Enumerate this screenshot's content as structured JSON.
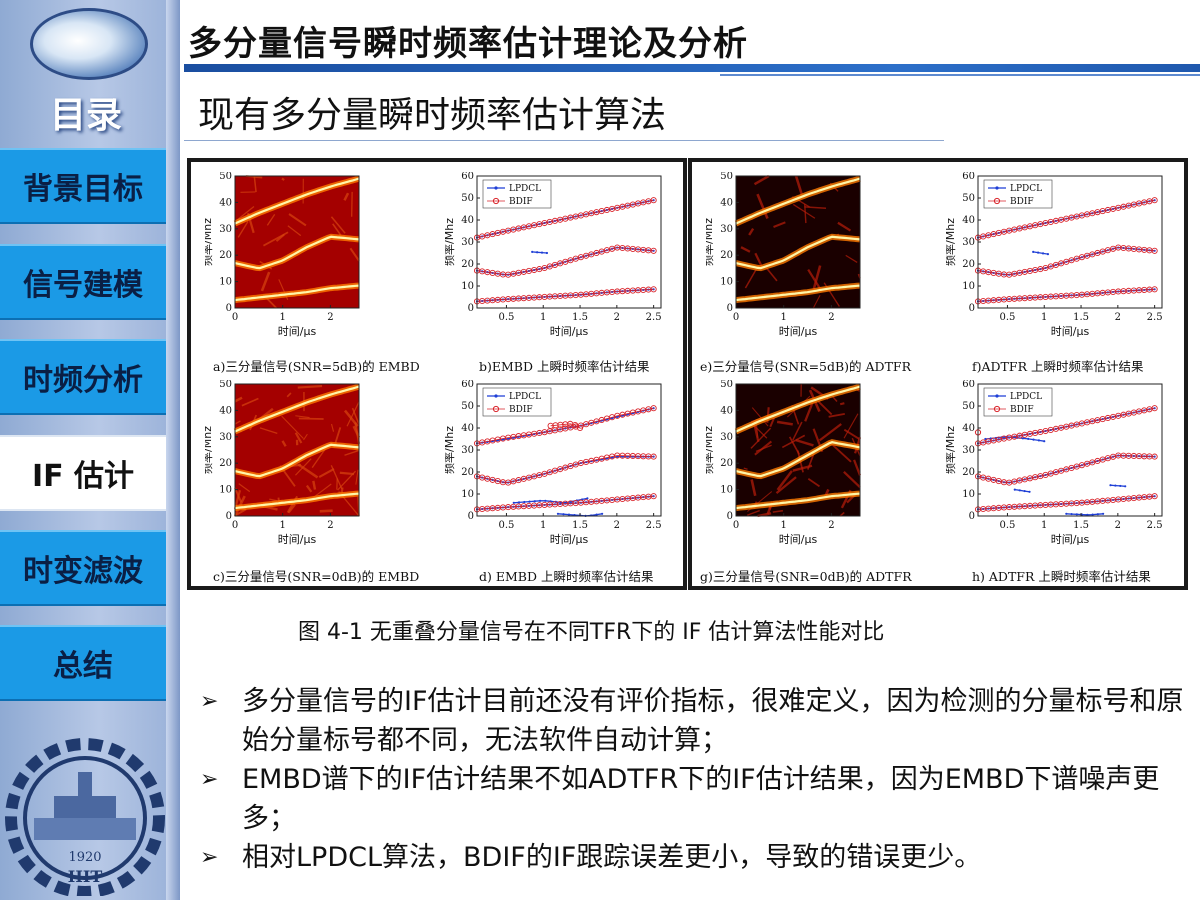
{
  "sidebar": {
    "menu_label": "目录",
    "items": [
      {
        "label": "背景目标",
        "active": false
      },
      {
        "label": "信号建模",
        "active": false
      },
      {
        "label": "时频分析",
        "active": false
      },
      {
        "label": "IF 估计",
        "active": true
      },
      {
        "label": "时变滤波",
        "active": false
      },
      {
        "label": "总结",
        "active": false
      }
    ],
    "seal_text": "1920",
    "seal_letters": "HIT"
  },
  "header": {
    "title": "多分量信号瞬时频率估计理论及分析",
    "section": "现有多分量瞬时频率估计算法"
  },
  "figure": {
    "captions": {
      "a": "a)三分量信号(SNR=5dB)的 EMBD",
      "b": "b)EMBD 上瞬时频率估计结果",
      "c": "c)三分量信号(SNR=0dB)的 EMBD",
      "d": "d) EMBD 上瞬时频率估计结果",
      "e": "e)三分量信号(SNR=5dB)的 ADTFR",
      "f": "f)ADTFR 上瞬时频率估计结果",
      "g": "g)三分量信号(SNR=0dB)的 ADTFR",
      "h": "h) ADTFR 上瞬时频率估计结果"
    },
    "ylabel": "频率/Mhz",
    "xlabel": "时间/μs",
    "legend": [
      "LPDCL",
      "BDIF"
    ],
    "caption": "图 4-1 无重叠分量信号在不同TFR下的 IF 估计算法性能对比"
  },
  "bullets": [
    "多分量信号的IF估计目前还没有评价指标，很难定义，因为检测的分量标号和原始分量标号都不同，无法软件自动计算；",
    "EMBD谱下的IF估计结果不如ADTFR下的IF估计结果，因为EMBD下谱噪声更多；",
    "相对LPDCL算法，BDIF的IF跟踪误差更小，导致的错误更少。"
  ],
  "chart_data": [
    {
      "id": "a",
      "type": "heatmap",
      "xlabel": "时间/μs",
      "ylabel": "频率/Mhz",
      "xlim": [
        0,
        2.6
      ],
      "ylim": [
        0,
        50
      ],
      "xticks": [
        0,
        1,
        2
      ],
      "yticks": [
        0,
        10,
        20,
        30,
        40,
        50
      ],
      "ridges": [
        {
          "x": [
            0,
            0.5,
            1,
            1.5,
            2,
            2.6
          ],
          "y": [
            32,
            36,
            39.5,
            43,
            46,
            49
          ]
        },
        {
          "x": [
            0,
            0.5,
            1,
            1.5,
            2,
            2.6
          ],
          "y": [
            17,
            15,
            18,
            23,
            27,
            26
          ]
        },
        {
          "x": [
            0,
            0.5,
            1,
            1.5,
            2,
            2.6
          ],
          "y": [
            3,
            4,
            5,
            6,
            7.5,
            8.5
          ]
        }
      ]
    },
    {
      "id": "b",
      "type": "line",
      "xlabel": "时间/μs",
      "ylabel": "频率/Mhz",
      "xlim": [
        0.1,
        2.6
      ],
      "ylim": [
        0,
        60
      ],
      "xticks": [
        0.5,
        1,
        1.5,
        2,
        2.5
      ],
      "yticks": [
        0,
        10,
        20,
        30,
        40,
        50,
        60
      ],
      "series": [
        {
          "name": "LPDCL",
          "segments": [
            {
              "x": [
                0.1,
                0.5,
                1,
                1.5,
                2,
                2.5
              ],
              "y": [
                32,
                35,
                38.5,
                42,
                45.5,
                49
              ]
            },
            {
              "x": [
                0.1,
                0.5,
                1,
                1.5,
                2,
                2.5
              ],
              "y": [
                17,
                15,
                18,
                23,
                27.5,
                26
              ]
            },
            {
              "x": [
                0.1,
                0.5,
                1,
                1.5,
                2,
                2.5
              ],
              "y": [
                3,
                4,
                5,
                6,
                7.5,
                8.5
              ]
            },
            {
              "x": [
                0.85,
                1.05
              ],
              "y": [
                25.5,
                25
              ]
            }
          ]
        },
        {
          "name": "BDIF",
          "segments": [
            {
              "x": [
                0.1,
                0.5,
                1,
                1.5,
                2,
                2.5
              ],
              "y": [
                32,
                35,
                38.5,
                42,
                45.5,
                49
              ]
            },
            {
              "x": [
                0.1,
                0.5,
                1,
                1.5,
                2,
                2.5
              ],
              "y": [
                17,
                15,
                18,
                23,
                27.5,
                26
              ]
            },
            {
              "x": [
                0.1,
                0.5,
                1,
                1.5,
                2,
                2.5
              ],
              "y": [
                3,
                4,
                5,
                6,
                7.5,
                8.5
              ]
            }
          ]
        }
      ]
    },
    {
      "id": "c",
      "type": "heatmap",
      "xlabel": "时间/μs",
      "ylabel": "频率/Mhz",
      "xlim": [
        0,
        2.6
      ],
      "ylim": [
        0,
        50
      ],
      "xticks": [
        0,
        1,
        2
      ],
      "yticks": [
        0,
        10,
        20,
        30,
        40,
        50
      ],
      "ridges": [
        {
          "x": [
            0,
            0.5,
            1,
            1.5,
            2,
            2.6
          ],
          "y": [
            32,
            36,
            39.5,
            43,
            46,
            49
          ]
        },
        {
          "x": [
            0,
            0.5,
            1,
            1.5,
            2,
            2.6
          ],
          "y": [
            17,
            15,
            18,
            23,
            27,
            26
          ]
        },
        {
          "x": [
            0,
            0.5,
            1,
            1.5,
            2,
            2.6
          ],
          "y": [
            3,
            4,
            5,
            6,
            7.5,
            8.5
          ]
        }
      ]
    },
    {
      "id": "d",
      "type": "line",
      "xlabel": "时间/μs",
      "ylabel": "频率/Mhz",
      "xlim": [
        0.1,
        2.6
      ],
      "ylim": [
        0,
        60
      ],
      "xticks": [
        0.5,
        1,
        1.5,
        2,
        2.5
      ],
      "yticks": [
        0,
        10,
        20,
        30,
        40,
        50,
        60
      ],
      "series": [
        {
          "name": "LPDCL",
          "segments": [
            {
              "x": [
                0.1,
                0.5,
                1,
                1.5,
                2,
                2.5
              ],
              "y": [
                33,
                35,
                38,
                41,
                45,
                49
              ]
            },
            {
              "x": [
                0.1,
                0.5,
                1,
                1.5,
                2,
                2.5
              ],
              "y": [
                18,
                15,
                19,
                24,
                27,
                27
              ]
            },
            {
              "x": [
                0.1,
                0.5,
                1,
                1.5,
                2,
                2.5
              ],
              "y": [
                3,
                4,
                5,
                6,
                7.5,
                9
              ]
            },
            {
              "x": [
                0.6,
                1.0,
                1.3,
                1.6
              ],
              "y": [
                6,
                7,
                6,
                8
              ]
            },
            {
              "x": [
                1.2,
                1.6,
                1.8
              ],
              "y": [
                1,
                0,
                1
              ]
            }
          ]
        },
        {
          "name": "BDIF",
          "segments": [
            {
              "x": [
                0.1,
                0.5,
                1,
                1.5,
                2,
                2.5
              ],
              "y": [
                33,
                35.5,
                38,
                41,
                45.5,
                49
              ]
            },
            {
              "x": [
                0.1,
                0.5,
                1,
                1.5,
                2,
                2.5
              ],
              "y": [
                18,
                15,
                19,
                24,
                27.5,
                27
              ]
            },
            {
              "x": [
                0.1,
                0.5,
                1,
                1.5,
                2,
                2.5
              ],
              "y": [
                3,
                4,
                5,
                6,
                7.5,
                9
              ]
            },
            {
              "x": [
                1.1,
                1.4,
                1.5
              ],
              "y": [
                41,
                42,
                40
              ]
            }
          ]
        }
      ]
    },
    {
      "id": "e",
      "type": "heatmap",
      "xlabel": "时间/μs",
      "ylabel": "频率/Mhz",
      "xlim": [
        0,
        2.6
      ],
      "ylim": [
        0,
        50
      ],
      "xticks": [
        0,
        1,
        2
      ],
      "yticks": [
        0,
        10,
        20,
        30,
        40,
        50
      ],
      "ridges": [
        {
          "x": [
            0,
            0.5,
            1,
            1.5,
            2,
            2.6
          ],
          "y": [
            32,
            36,
            39.5,
            43,
            46,
            49
          ]
        },
        {
          "x": [
            0,
            0.5,
            1,
            1.5,
            2,
            2.6
          ],
          "y": [
            17,
            15,
            18,
            23,
            27,
            26
          ]
        },
        {
          "x": [
            0,
            0.5,
            1,
            1.5,
            2,
            2.6
          ],
          "y": [
            3,
            4,
            5,
            6,
            7.5,
            8.5
          ]
        }
      ]
    },
    {
      "id": "f",
      "type": "line",
      "xlabel": "时间/μs",
      "ylabel": "频率/Mhz",
      "xlim": [
        0.1,
        2.6
      ],
      "ylim": [
        0,
        60
      ],
      "xticks": [
        0.5,
        1,
        1.5,
        2,
        2.5
      ],
      "yticks": [
        0,
        10,
        20,
        30,
        40,
        50,
        60
      ],
      "series": [
        {
          "name": "LPDCL",
          "segments": [
            {
              "x": [
                0.1,
                0.5,
                1,
                1.5,
                2,
                2.5
              ],
              "y": [
                32,
                35,
                38.5,
                42,
                45.5,
                49
              ]
            },
            {
              "x": [
                0.1,
                0.5,
                1,
                1.5,
                2,
                2.5
              ],
              "y": [
                17,
                15,
                18,
                23,
                27.5,
                26
              ]
            },
            {
              "x": [
                0.1,
                0.5,
                1,
                1.5,
                2,
                2.5
              ],
              "y": [
                3,
                4,
                5,
                6,
                7.5,
                8.5
              ]
            },
            {
              "x": [
                0.85,
                1.05
              ],
              "y": [
                25.5,
                24.5
              ]
            }
          ]
        },
        {
          "name": "BDIF",
          "segments": [
            {
              "x": [
                0.1,
                0.5,
                1,
                1.5,
                2,
                2.5
              ],
              "y": [
                32,
                35,
                38.5,
                42,
                45.5,
                49
              ]
            },
            {
              "x": [
                0.1,
                0.5,
                1,
                1.5,
                2,
                2.5
              ],
              "y": [
                17,
                15,
                18,
                23,
                27.5,
                26
              ]
            },
            {
              "x": [
                0.1,
                0.5,
                1,
                1.5,
                2,
                2.5
              ],
              "y": [
                3,
                4,
                5,
                6,
                7.5,
                8.5
              ]
            }
          ]
        }
      ]
    },
    {
      "id": "g",
      "type": "heatmap",
      "xlabel": "时间/μs",
      "ylabel": "频率/Mhz",
      "xlim": [
        0,
        2.6
      ],
      "ylim": [
        0,
        50
      ],
      "xticks": [
        0,
        1,
        2
      ],
      "yticks": [
        0,
        10,
        20,
        30,
        40,
        50
      ],
      "ridges": [
        {
          "x": [
            0,
            0.5,
            1,
            1.5,
            2,
            2.6
          ],
          "y": [
            32,
            36,
            39.5,
            43,
            46,
            49
          ]
        },
        {
          "x": [
            0,
            0.5,
            1,
            1.5,
            2,
            2.6
          ],
          "y": [
            17,
            15,
            18,
            23,
            28,
            26
          ]
        },
        {
          "x": [
            0,
            0.5,
            1,
            1.5,
            2,
            2.6
          ],
          "y": [
            3,
            4,
            5,
            6,
            7.5,
            8.5
          ]
        }
      ]
    },
    {
      "id": "h",
      "type": "line",
      "xlabel": "时间/μs",
      "ylabel": "频率/Mhz",
      "xlim": [
        0.1,
        2.6
      ],
      "ylim": [
        0,
        60
      ],
      "xticks": [
        0.5,
        1,
        1.5,
        2,
        2.5
      ],
      "yticks": [
        0,
        10,
        20,
        30,
        40,
        50,
        60
      ],
      "series": [
        {
          "name": "LPDCL",
          "segments": [
            {
              "x": [
                0.1,
                0.5,
                1,
                1.5,
                2,
                2.5
              ],
              "y": [
                33,
                35.5,
                38.5,
                42,
                45.5,
                49
              ]
            },
            {
              "x": [
                0.1,
                0.5,
                1,
                1.5,
                2,
                2.5
              ],
              "y": [
                18,
                15,
                18.5,
                23,
                27.5,
                27
              ]
            },
            {
              "x": [
                0.1,
                0.5,
                1,
                1.5,
                2,
                2.5
              ],
              "y": [
                3,
                4,
                5,
                6,
                7.5,
                9
              ]
            },
            {
              "x": [
                0.2,
                0.5,
                0.8,
                1.0
              ],
              "y": [
                35,
                36,
                35,
                34
              ]
            },
            {
              "x": [
                0.6,
                0.8
              ],
              "y": [
                12,
                11
              ]
            },
            {
              "x": [
                1.3,
                1.6,
                1.8
              ],
              "y": [
                1,
                0.5,
                1
              ]
            },
            {
              "x": [
                1.9,
                2.1
              ],
              "y": [
                14,
                13.5
              ]
            }
          ]
        },
        {
          "name": "BDIF",
          "segments": [
            {
              "x": [
                0.1,
                0.5,
                1,
                1.5,
                2,
                2.5
              ],
              "y": [
                33,
                35.5,
                38.5,
                42,
                45.5,
                49
              ]
            },
            {
              "x": [
                0.1,
                0.5,
                1,
                1.5,
                2,
                2.5
              ],
              "y": [
                18,
                15,
                18.5,
                23,
                27.5,
                27
              ]
            },
            {
              "x": [
                0.1,
                0.5,
                1,
                1.5,
                2,
                2.5
              ],
              "y": [
                3,
                4,
                5,
                6,
                7.5,
                9
              ]
            },
            {
              "x": [
                0.1
              ],
              "y": [
                38
              ]
            }
          ]
        }
      ]
    }
  ]
}
